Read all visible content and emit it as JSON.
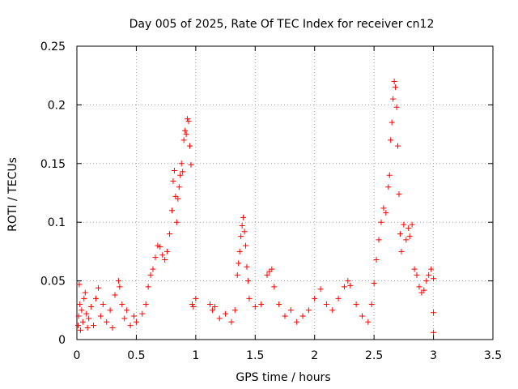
{
  "chart_data": {
    "type": "scatter",
    "title": "Day 005 of 2025, Rate Of TEC Index for receiver cn12",
    "xlabel": "GPS time / hours",
    "ylabel": "ROTI / TECUs",
    "xlim": [
      0,
      3.5
    ],
    "ylim": [
      0,
      0.25
    ],
    "x_ticks": [
      0,
      0.5,
      1,
      1.5,
      2,
      2.5,
      3,
      3.5
    ],
    "x_tick_labels": [
      "0",
      "0.5",
      "1",
      "1.5",
      "2",
      "2.5",
      "3",
      "3.5"
    ],
    "y_ticks": [
      0,
      0.05,
      0.1,
      0.15,
      0.2,
      0.25
    ],
    "y_tick_labels": [
      "0",
      "0.05",
      "0.1",
      "0.15",
      "0.2",
      "0.25"
    ],
    "grid": true,
    "marker": "+",
    "marker_color": "#ff0000",
    "series": [
      {
        "points": [
          [
            0.01,
            0.012
          ],
          [
            0.015,
            0.02
          ],
          [
            0.02,
            0.047
          ],
          [
            0.025,
            0.03
          ],
          [
            0.03,
            0.008
          ],
          [
            0.04,
            0.025
          ],
          [
            0.05,
            0.015
          ],
          [
            0.06,
            0.035
          ],
          [
            0.07,
            0.04
          ],
          [
            0.08,
            0.022
          ],
          [
            0.09,
            0.01
          ],
          [
            0.1,
            0.018
          ],
          [
            0.12,
            0.028
          ],
          [
            0.14,
            0.012
          ],
          [
            0.16,
            0.035
          ],
          [
            0.18,
            0.044
          ],
          [
            0.2,
            0.02
          ],
          [
            0.22,
            0.03
          ],
          [
            0.25,
            0.015
          ],
          [
            0.28,
            0.025
          ],
          [
            0.3,
            0.01
          ],
          [
            0.32,
            0.038
          ],
          [
            0.35,
            0.05
          ],
          [
            0.36,
            0.045
          ],
          [
            0.38,
            0.03
          ],
          [
            0.4,
            0.018
          ],
          [
            0.42,
            0.025
          ],
          [
            0.45,
            0.012
          ],
          [
            0.48,
            0.02
          ],
          [
            0.5,
            0.015
          ],
          [
            0.55,
            0.022
          ],
          [
            0.58,
            0.03
          ],
          [
            0.6,
            0.045
          ],
          [
            0.62,
            0.055
          ],
          [
            0.64,
            0.06
          ],
          [
            0.66,
            0.07
          ],
          [
            0.68,
            0.08
          ],
          [
            0.7,
            0.079
          ],
          [
            0.72,
            0.072
          ],
          [
            0.74,
            0.068
          ],
          [
            0.76,
            0.075
          ],
          [
            0.78,
            0.09
          ],
          [
            0.8,
            0.11
          ],
          [
            0.81,
            0.135
          ],
          [
            0.82,
            0.144
          ],
          [
            0.83,
            0.122
          ],
          [
            0.84,
            0.1
          ],
          [
            0.85,
            0.12
          ],
          [
            0.86,
            0.13
          ],
          [
            0.87,
            0.14
          ],
          [
            0.88,
            0.15
          ],
          [
            0.89,
            0.143
          ],
          [
            0.9,
            0.17
          ],
          [
            0.91,
            0.178
          ],
          [
            0.92,
            0.175
          ],
          [
            0.93,
            0.188
          ],
          [
            0.94,
            0.186
          ],
          [
            0.95,
            0.165
          ],
          [
            0.96,
            0.149
          ],
          [
            0.97,
            0.03
          ],
          [
            0.98,
            0.028
          ],
          [
            1.0,
            0.035
          ],
          [
            1.12,
            0.03
          ],
          [
            1.14,
            0.025
          ],
          [
            1.16,
            0.028
          ],
          [
            1.2,
            0.018
          ],
          [
            1.25,
            0.022
          ],
          [
            1.3,
            0.015
          ],
          [
            1.33,
            0.025
          ],
          [
            1.35,
            0.055
          ],
          [
            1.36,
            0.065
          ],
          [
            1.37,
            0.075
          ],
          [
            1.38,
            0.088
          ],
          [
            1.39,
            0.097
          ],
          [
            1.4,
            0.104
          ],
          [
            1.41,
            0.092
          ],
          [
            1.42,
            0.08
          ],
          [
            1.43,
            0.062
          ],
          [
            1.44,
            0.05
          ],
          [
            1.45,
            0.035
          ],
          [
            1.5,
            0.028
          ],
          [
            1.55,
            0.03
          ],
          [
            1.6,
            0.055
          ],
          [
            1.62,
            0.058
          ],
          [
            1.64,
            0.06
          ],
          [
            1.66,
            0.045
          ],
          [
            1.7,
            0.03
          ],
          [
            1.75,
            0.02
          ],
          [
            1.8,
            0.025
          ],
          [
            1.85,
            0.015
          ],
          [
            1.9,
            0.02
          ],
          [
            1.95,
            0.025
          ],
          [
            2.0,
            0.035
          ],
          [
            2.05,
            0.043
          ],
          [
            2.1,
            0.03
          ],
          [
            2.15,
            0.025
          ],
          [
            2.2,
            0.035
          ],
          [
            2.25,
            0.045
          ],
          [
            2.28,
            0.05
          ],
          [
            2.3,
            0.046
          ],
          [
            2.35,
            0.03
          ],
          [
            2.4,
            0.02
          ],
          [
            2.45,
            0.015
          ],
          [
            2.48,
            0.03
          ],
          [
            2.5,
            0.048
          ],
          [
            2.52,
            0.068
          ],
          [
            2.54,
            0.085
          ],
          [
            2.56,
            0.1
          ],
          [
            2.58,
            0.112
          ],
          [
            2.6,
            0.108
          ],
          [
            2.62,
            0.13
          ],
          [
            2.63,
            0.14
          ],
          [
            2.64,
            0.17
          ],
          [
            2.65,
            0.185
          ],
          [
            2.66,
            0.205
          ],
          [
            2.67,
            0.22
          ],
          [
            2.68,
            0.215
          ],
          [
            2.69,
            0.198
          ],
          [
            2.7,
            0.165
          ],
          [
            2.71,
            0.124
          ],
          [
            2.72,
            0.09
          ],
          [
            2.73,
            0.075
          ],
          [
            2.75,
            0.098
          ],
          [
            2.77,
            0.085
          ],
          [
            2.79,
            0.095
          ],
          [
            2.8,
            0.088
          ],
          [
            2.82,
            0.098
          ],
          [
            2.84,
            0.06
          ],
          [
            2.86,
            0.055
          ],
          [
            2.88,
            0.045
          ],
          [
            2.9,
            0.04
          ],
          [
            2.92,
            0.042
          ],
          [
            2.94,
            0.05
          ],
          [
            2.96,
            0.055
          ],
          [
            2.98,
            0.06
          ],
          [
            3.0,
            0.052
          ],
          [
            3.0,
            0.023
          ],
          [
            3.0,
            0.006
          ]
        ]
      }
    ]
  }
}
